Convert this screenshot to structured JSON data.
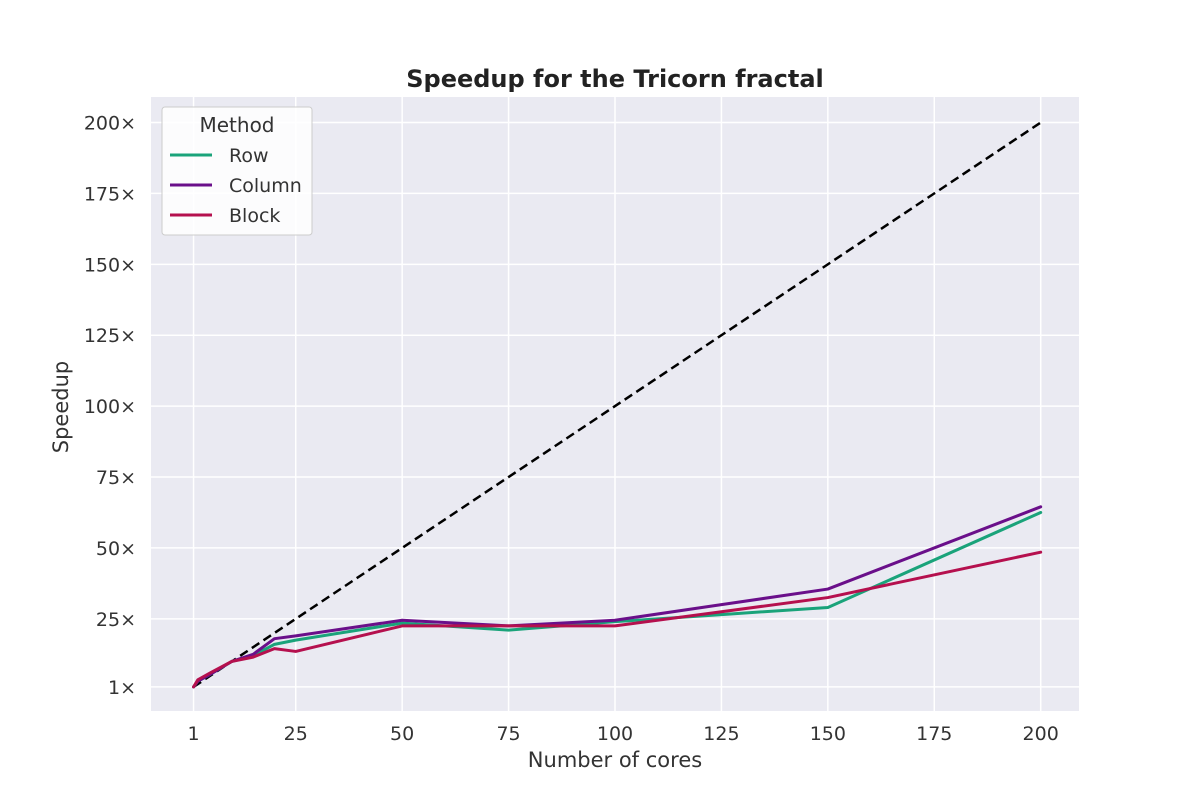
{
  "chart_data": {
    "type": "line",
    "title": "Speedup for the Tricorn fractal",
    "xlabel": "Number of cores",
    "ylabel": "Speedup",
    "xlim": [
      -9,
      209
    ],
    "ylim": [
      -7.5,
      209
    ],
    "x_ticks": [
      {
        "value": 1,
        "label": "1"
      },
      {
        "value": 25,
        "label": "25"
      },
      {
        "value": 50,
        "label": "50"
      },
      {
        "value": 75,
        "label": "75"
      },
      {
        "value": 100,
        "label": "100"
      },
      {
        "value": 125,
        "label": "125"
      },
      {
        "value": 150,
        "label": "150"
      },
      {
        "value": 175,
        "label": "175"
      },
      {
        "value": 200,
        "label": "200"
      }
    ],
    "y_ticks": [
      {
        "value": 1,
        "label": "1×"
      },
      {
        "value": 25,
        "label": "25×"
      },
      {
        "value": 50,
        "label": "50×"
      },
      {
        "value": 75,
        "label": "75×"
      },
      {
        "value": 100,
        "label": "100×"
      },
      {
        "value": 125,
        "label": "125×"
      },
      {
        "value": 150,
        "label": "150×"
      },
      {
        "value": 175,
        "label": "175×"
      },
      {
        "value": 200,
        "label": "200×"
      }
    ],
    "grid": true,
    "background_color": "#eaeaf2",
    "legend": {
      "title": "Method",
      "placement": "upper-left"
    },
    "series": [
      {
        "name": "Row",
        "color": "#1aa37a",
        "points": [
          [
            1,
            1
          ],
          [
            2,
            3
          ],
          [
            5,
            5.5
          ],
          [
            10,
            10
          ],
          [
            15,
            12
          ],
          [
            20,
            16
          ],
          [
            25,
            17.5
          ],
          [
            50,
            23.5
          ],
          [
            75,
            21
          ],
          [
            100,
            24
          ],
          [
            125,
            26.5
          ],
          [
            150,
            29
          ],
          [
            200,
            62.5
          ]
        ]
      },
      {
        "name": "Column",
        "color": "#6a0f8a",
        "points": [
          [
            1,
            1
          ],
          [
            2,
            3
          ],
          [
            5,
            5.5
          ],
          [
            10,
            10
          ],
          [
            15,
            12.5
          ],
          [
            20,
            18
          ],
          [
            25,
            19
          ],
          [
            50,
            24.5
          ],
          [
            75,
            22.5
          ],
          [
            100,
            24.5
          ],
          [
            125,
            30
          ],
          [
            150,
            35.5
          ],
          [
            200,
            64.5
          ]
        ]
      },
      {
        "name": "Block",
        "color": "#b5104e",
        "points": [
          [
            1,
            1
          ],
          [
            2,
            3.5
          ],
          [
            5,
            6
          ],
          [
            10,
            10
          ],
          [
            15,
            11.5
          ],
          [
            20,
            14.5
          ],
          [
            25,
            13.5
          ],
          [
            50,
            22.5
          ],
          [
            75,
            22.5
          ],
          [
            100,
            22.5
          ],
          [
            125,
            27.5
          ],
          [
            150,
            32.5
          ],
          [
            200,
            48.5
          ]
        ]
      }
    ],
    "reference_line": {
      "style": "dashed",
      "color": "#000000",
      "points": [
        [
          1,
          1
        ],
        [
          200,
          200
        ]
      ]
    }
  }
}
